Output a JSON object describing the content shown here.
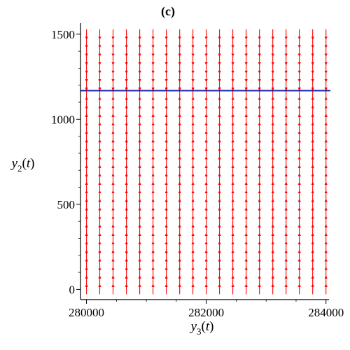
{
  "chart_data": {
    "type": "vector-field",
    "title": "(c)",
    "xlabel": {
      "var": "y",
      "sub": "3",
      "arg": "t"
    },
    "ylabel": {
      "var": "y",
      "sub": "2",
      "arg": "t"
    },
    "xlim": [
      279900,
      284050
    ],
    "ylim": [
      -60,
      1565
    ],
    "xticks": [
      280000,
      282000,
      284000
    ],
    "yticks": [
      0,
      500,
      1000,
      1500
    ],
    "grid_x": [
      280000,
      280222,
      280444,
      280667,
      280889,
      281111,
      281333,
      281556,
      281778,
      282000,
      282222,
      282444,
      282667,
      282889,
      283111,
      283333,
      283556,
      283778,
      284000
    ],
    "grid_y": [
      0,
      50,
      100,
      150,
      200,
      250,
      300,
      350,
      400,
      450,
      500,
      550,
      600,
      650,
      700,
      750,
      800,
      850,
      900,
      950,
      1000,
      1050,
      1100,
      1150,
      1200,
      1250,
      1300,
      1350,
      1400,
      1450,
      1500
    ],
    "equilibrium_y": 1168,
    "vector_direction": {
      "below_equilibrium": "up",
      "above_equilibrium": "down"
    },
    "field_color": "#ff0000",
    "line_color": "#2222aa",
    "grid": false
  }
}
